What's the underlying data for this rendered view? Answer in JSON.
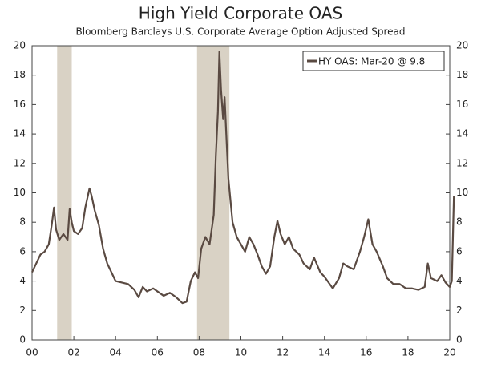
{
  "chart_data": {
    "type": "line",
    "title": "High Yield Corporate OAS",
    "subtitle": "Bloomberg Barclays U.S. Corporate Average Option Adjusted Spread",
    "shaded_regions": [
      [
        2001.2,
        2001.9
      ],
      [
        2007.9,
        2009.45
      ]
    ],
    "shade_color": "#d9d2c5",
    "legend": "top-right",
    "xlim": [
      2000,
      2020
    ],
    "xticks": [
      {
        "value": 2000,
        "label": "00"
      },
      {
        "value": 2002,
        "label": "02"
      },
      {
        "value": 2004,
        "label": "04"
      },
      {
        "value": 2006,
        "label": "06"
      },
      {
        "value": 2008,
        "label": "08"
      },
      {
        "value": 2010,
        "label": "10"
      },
      {
        "value": 2012,
        "label": "12"
      },
      {
        "value": 2014,
        "label": "14"
      },
      {
        "value": 2016,
        "label": "16"
      },
      {
        "value": 2018,
        "label": "18"
      },
      {
        "value": 2020,
        "label": "20"
      }
    ],
    "ylim": [
      0,
      20
    ],
    "yticks": [
      0,
      2,
      4,
      6,
      8,
      10,
      12,
      14,
      16,
      18,
      20
    ],
    "x": [
      2000.0,
      2000.2,
      2000.4,
      2000.6,
      2000.8,
      2000.95,
      2001.05,
      2001.15,
      2001.3,
      2001.5,
      2001.7,
      2001.8,
      2001.9,
      2002.0,
      2002.2,
      2002.4,
      2002.55,
      2002.75,
      2002.85,
      2003.0,
      2003.2,
      2003.4,
      2003.6,
      2003.8,
      2004.0,
      2004.3,
      2004.6,
      2004.9,
      2005.1,
      2005.3,
      2005.5,
      2005.8,
      2006.0,
      2006.3,
      2006.6,
      2006.9,
      2007.2,
      2007.4,
      2007.6,
      2007.8,
      2007.95,
      2008.1,
      2008.3,
      2008.5,
      2008.7,
      2008.8,
      2008.9,
      2008.97,
      2009.05,
      2009.15,
      2009.22,
      2009.3,
      2009.4,
      2009.6,
      2009.8,
      2010.0,
      2010.2,
      2010.4,
      2010.6,
      2010.8,
      2011.0,
      2011.2,
      2011.4,
      2011.6,
      2011.75,
      2011.9,
      2012.1,
      2012.3,
      2012.5,
      2012.8,
      2013.0,
      2013.3,
      2013.5,
      2013.8,
      2014.0,
      2014.4,
      2014.7,
      2014.9,
      2015.1,
      2015.4,
      2015.7,
      2015.9,
      2016.1,
      2016.3,
      2016.5,
      2016.8,
      2017.0,
      2017.3,
      2017.6,
      2017.9,
      2018.2,
      2018.5,
      2018.8,
      2018.95,
      2019.1,
      2019.4,
      2019.6,
      2019.8,
      2020.0,
      2020.1,
      2020.2
    ],
    "series": [
      {
        "name": "HY OAS: Mar-20 @ 9.8",
        "color": "#5a4a42",
        "values": [
          4.6,
          5.2,
          5.8,
          6.0,
          6.5,
          7.9,
          9.0,
          7.5,
          6.8,
          7.2,
          6.8,
          8.9,
          8.0,
          7.4,
          7.2,
          7.6,
          9.0,
          10.3,
          9.8,
          8.8,
          7.8,
          6.2,
          5.2,
          4.6,
          4.0,
          3.9,
          3.8,
          3.4,
          2.9,
          3.6,
          3.3,
          3.5,
          3.3,
          3.0,
          3.2,
          2.9,
          2.5,
          2.6,
          4.0,
          4.6,
          4.2,
          6.2,
          7.0,
          6.5,
          8.5,
          12.5,
          15.5,
          19.6,
          17.0,
          15.0,
          16.5,
          14.0,
          11.0,
          8.0,
          7.0,
          6.5,
          6.0,
          7.0,
          6.5,
          5.8,
          5.0,
          4.5,
          5.0,
          7.0,
          8.1,
          7.2,
          6.5,
          7.0,
          6.2,
          5.8,
          5.2,
          4.8,
          5.6,
          4.6,
          4.3,
          3.5,
          4.2,
          5.2,
          5.0,
          4.8,
          6.0,
          7.0,
          8.2,
          6.5,
          6.0,
          5.0,
          4.2,
          3.8,
          3.8,
          3.5,
          3.5,
          3.4,
          3.6,
          5.2,
          4.2,
          4.0,
          4.4,
          3.9,
          3.6,
          4.0,
          9.8
        ]
      }
    ]
  }
}
